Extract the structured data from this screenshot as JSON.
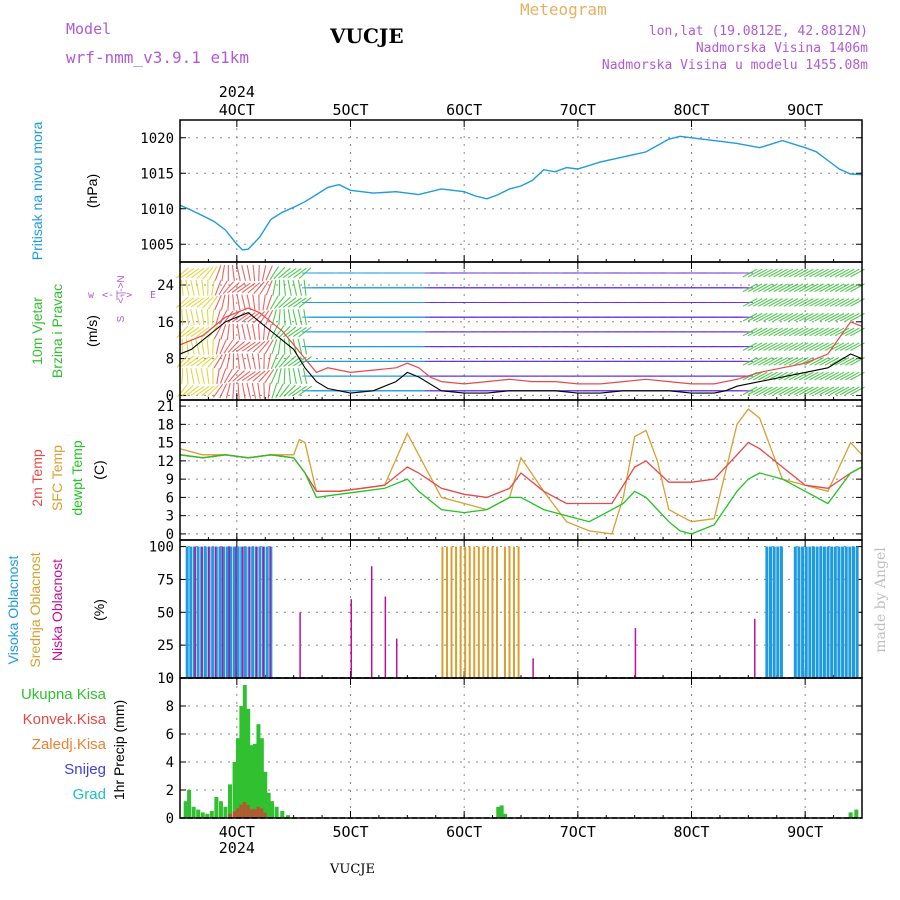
{
  "header": {
    "model_label": "Model",
    "model_name": "wrf-nmm_v3.9.1 e1km",
    "station": "VUCJE",
    "meteogram_label": "Meteogram",
    "lonlat": "lon,lat (19.0812E, 42.8812N)",
    "elevation": "Nadmorska Visina 1406m",
    "model_elevation": "Nadmorska Visina u modelu 1455.08m",
    "footer_station": "VUCJE",
    "watermark": "made by Angel"
  },
  "colors": {
    "pressure": "#1e9be0",
    "temp_2m": "#e84848",
    "sfc_temp": "#d8a030",
    "dewpoint": "#22c422",
    "high_cloud": "#1e9be0",
    "mid_cloud": "#d8a030",
    "low_cloud": "#c0109a",
    "total_precip": "#30c030",
    "convective": "#e84848",
    "freezing": "#f08030",
    "snow": "#4040e0",
    "hail": "#20c0c0",
    "purple_text": "#b05ad8"
  },
  "axis_labels": {
    "pressure": [
      "Pritisak na nivou mora",
      "(hPa)"
    ],
    "wind": [
      "10m Vjetar",
      "Brzina i Pravac",
      "(m/s)"
    ],
    "wind_compass": [
      "w",
      "<-|->",
      "E",
      "<-|->",
      "N",
      "S"
    ],
    "temp": [
      "2m Temp",
      "SFC Temp",
      "dewpt Temp",
      "(C)"
    ],
    "cloud": [
      "Visoka Oblacnost",
      "Srednja Oblacnost",
      "Niska Oblacnost",
      "(%)"
    ],
    "precip_legend": [
      "Ukupna Kisa",
      "Konvek.Kisa",
      "Zaledj.Kisa",
      "Snijeg",
      "Grad"
    ],
    "precip_unit": "1hr Precip (mm)"
  },
  "chart_data": {
    "type": "line",
    "x_range_days": [
      3.5,
      9.5
    ],
    "x_ticks": [
      "4OCT",
      "5OCT",
      "6OCT",
      "7OCT",
      "8OCT",
      "9OCT"
    ],
    "x_year": "2024",
    "panels": {
      "pressure": {
        "ylim": [
          1002.5,
          1022.5
        ],
        "yticks": [
          "1005",
          "1010",
          "1015",
          "1020"
        ],
        "series": [
          {
            "name": "Pritisak na nivou mora",
            "x": [
              3.5,
              3.6,
              3.7,
              3.8,
              3.9,
              4.0,
              4.05,
              4.1,
              4.2,
              4.3,
              4.4,
              4.5,
              4.6,
              4.7,
              4.8,
              4.9,
              5.0,
              5.2,
              5.4,
              5.6,
              5.8,
              6.0,
              6.1,
              6.2,
              6.3,
              6.4,
              6.5,
              6.6,
              6.7,
              6.8,
              6.9,
              7.0,
              7.2,
              7.4,
              7.6,
              7.8,
              7.9,
              8.0,
              8.2,
              8.4,
              8.6,
              8.8,
              9.0,
              9.1,
              9.2,
              9.3,
              9.4,
              9.5
            ],
            "values": [
              1010.5,
              1009.8,
              1009.0,
              1008.2,
              1007.0,
              1005.0,
              1004.2,
              1004.3,
              1006.0,
              1008.5,
              1009.5,
              1010.2,
              1011.0,
              1012.0,
              1013.0,
              1013.4,
              1012.6,
              1012.2,
              1012.4,
              1012.0,
              1012.8,
              1012.4,
              1011.8,
              1011.4,
              1012.0,
              1012.8,
              1013.2,
              1014.0,
              1015.5,
              1015.2,
              1015.8,
              1015.6,
              1016.6,
              1017.3,
              1018.0,
              1019.8,
              1020.2,
              1020.0,
              1019.6,
              1019.2,
              1018.6,
              1019.6,
              1018.6,
              1018.0,
              1016.8,
              1015.6,
              1014.9,
              1014.8
            ]
          }
        ]
      },
      "wind": {
        "ylim": [
          -1,
          29
        ],
        "yticks": [
          "0",
          "8",
          "16",
          "24"
        ],
        "series": [
          {
            "name": "10m wind speed",
            "x": [
              3.5,
              3.6,
              3.7,
              3.8,
              3.9,
              4.0,
              4.1,
              4.2,
              4.3,
              4.4,
              4.5,
              4.6,
              4.7,
              4.8,
              4.9,
              5.0,
              5.2,
              5.4,
              5.5,
              5.6,
              5.8,
              6.0,
              6.2,
              6.4,
              6.6,
              6.8,
              7.0,
              7.2,
              7.4,
              7.6,
              7.8,
              8.0,
              8.2,
              8.3,
              8.4,
              8.6,
              8.8,
              9.0,
              9.2,
              9.4,
              9.5
            ],
            "values": [
              9,
              10,
              12,
              14,
              16,
              17,
              18,
              16,
              14,
              12,
              10,
              6,
              3,
              1.5,
              1,
              0.5,
              1,
              3,
              5,
              4,
              1,
              0.5,
              0.5,
              1,
              1,
              1,
              0.5,
              0.5,
              1,
              1,
              1,
              0.5,
              0.5,
              1,
              2,
              3,
              4,
              5,
              6,
              9,
              8
            ]
          },
          {
            "name": "gust",
            "x": [
              3.5,
              3.6,
              3.7,
              3.8,
              3.9,
              4.0,
              4.1,
              4.2,
              4.3,
              4.4,
              4.5,
              4.6,
              4.7,
              4.8,
              5.0,
              5.2,
              5.4,
              5.5,
              5.6,
              5.7,
              5.8,
              6.0,
              6.2,
              6.4,
              6.6,
              6.8,
              7.0,
              7.2,
              7.4,
              7.6,
              7.8,
              8.0,
              8.2,
              8.4,
              8.6,
              8.8,
              9.0,
              9.2,
              9.4,
              9.5
            ],
            "values": [
              11,
              12,
              13,
              15,
              17,
              18,
              19,
              18,
              16,
              14,
              11,
              8,
              5,
              6,
              5,
              5.5,
              6,
              7,
              6,
              4,
              3,
              2.5,
              3,
              3.5,
              3,
              3,
              2.5,
              2.5,
              3,
              3.5,
              3,
              2.5,
              2.5,
              3.5,
              5,
              6,
              7,
              9,
              16,
              15
            ]
          }
        ]
      },
      "temp": {
        "ylim": [
          -1,
          22
        ],
        "yticks": [
          "0",
          "3",
          "6",
          "9",
          "12",
          "15",
          "18",
          "21"
        ],
        "series": [
          {
            "name": "2m Temp",
            "x": [
              3.5,
              3.7,
              3.9,
              4.1,
              4.3,
              4.5,
              4.6,
              4.7,
              4.9,
              5.1,
              5.3,
              5.5,
              5.6,
              5.8,
              6.0,
              6.2,
              6.4,
              6.5,
              6.7,
              6.9,
              7.1,
              7.3,
              7.5,
              7.6,
              7.8,
              8.0,
              8.2,
              8.4,
              8.5,
              8.6,
              8.8,
              9.0,
              9.2,
              9.4,
              9.5
            ],
            "values": [
              13,
              12.5,
              13,
              12.5,
              13,
              12.5,
              10,
              7,
              7,
              7.5,
              8,
              11,
              10,
              7.5,
              6.5,
              6,
              7.5,
              10,
              7,
              5,
              5,
              5,
              11,
              12,
              8.5,
              8.5,
              9,
              13,
              15,
              14,
              11,
              8,
              7.5,
              10,
              11
            ]
          },
          {
            "name": "SFC Temp",
            "x": [
              3.5,
              3.7,
              3.9,
              4.1,
              4.3,
              4.5,
              4.55,
              4.6,
              4.7,
              4.9,
              5.1,
              5.3,
              5.5,
              5.6,
              5.8,
              6.0,
              6.2,
              6.4,
              6.5,
              6.7,
              6.9,
              7.1,
              7.3,
              7.4,
              7.5,
              7.6,
              7.7,
              7.8,
              8.0,
              8.2,
              8.4,
              8.5,
              8.6,
              8.8,
              9.0,
              9.2,
              9.4,
              9.5
            ],
            "values": [
              14,
              13,
              13,
              12.5,
              13,
              13,
              15.5,
              15,
              7,
              7,
              7.5,
              8,
              16.5,
              13,
              6,
              5,
              4,
              6,
              12.5,
              7,
              2,
              0.5,
              0,
              6,
              16,
              17,
              12,
              4,
              2,
              2.5,
              18,
              20.5,
              19,
              9,
              8,
              7,
              15,
              13
            ]
          },
          {
            "name": "dewpt Temp",
            "x": [
              3.5,
              3.7,
              3.9,
              4.1,
              4.3,
              4.5,
              4.6,
              4.7,
              4.9,
              5.1,
              5.3,
              5.5,
              5.6,
              5.8,
              6.0,
              6.2,
              6.4,
              6.5,
              6.7,
              6.9,
              7.1,
              7.2,
              7.4,
              7.5,
              7.6,
              7.8,
              7.9,
              8.0,
              8.2,
              8.4,
              8.5,
              8.6,
              8.8,
              9.0,
              9.2,
              9.4,
              9.5
            ],
            "values": [
              13,
              12.5,
              13,
              12.5,
              13,
              12.5,
              10,
              6,
              6.5,
              7,
              7.5,
              9,
              7,
              4,
              3.5,
              4,
              6,
              6,
              4,
              3,
              2,
              3,
              5,
              7,
              6,
              2,
              0.5,
              0,
              1.5,
              7,
              9,
              10,
              9,
              7,
              5,
              10,
              11
            ]
          }
        ]
      },
      "cloud": {
        "ylim": [
          0,
          105
        ],
        "yticks": [
          "0",
          "25",
          "50",
          "75",
          "100"
        ],
        "high_cloud_ranges_days": [
          [
            3.55,
            4.3
          ],
          [
            8.65,
            8.8
          ],
          [
            8.9,
            9.45
          ]
        ],
        "mid_cloud_ranges_days": [
          [
            5.8,
            6.3
          ],
          [
            6.35,
            6.5
          ]
        ],
        "low_cloud_spikes": [
          [
            4.55,
            50
          ],
          [
            5.0,
            60
          ],
          [
            5.18,
            85
          ],
          [
            5.3,
            62
          ],
          [
            5.4,
            30
          ],
          [
            6.6,
            15
          ],
          [
            7.5,
            38
          ],
          [
            8.55,
            45
          ]
        ]
      },
      "precip": {
        "ylim": [
          0,
          10
        ],
        "yticks": [
          "0",
          "2",
          "4",
          "6",
          "8",
          "10"
        ],
        "total_x": [
          3.55,
          3.58,
          3.62,
          3.66,
          3.7,
          3.74,
          3.78,
          3.82,
          3.86,
          3.9,
          3.94,
          3.98,
          4.01,
          4.04,
          4.07,
          4.1,
          4.13,
          4.16,
          4.19,
          4.22,
          4.25,
          4.28,
          4.31,
          4.35,
          4.4,
          4.45,
          6.3,
          6.33,
          6.36,
          9.4,
          9.45
        ],
        "total_values": [
          1.2,
          2,
          0.8,
          0.6,
          0.4,
          0.3,
          0.5,
          1.5,
          1.2,
          0.8,
          2.4,
          4,
          5.7,
          8,
          9.5,
          7.8,
          5.2,
          5.3,
          6.7,
          5.7,
          3.3,
          1.8,
          1.2,
          0.8,
          0.5,
          0.2,
          0.8,
          0.9,
          0.3,
          0.4,
          0.6
        ]
      }
    }
  }
}
